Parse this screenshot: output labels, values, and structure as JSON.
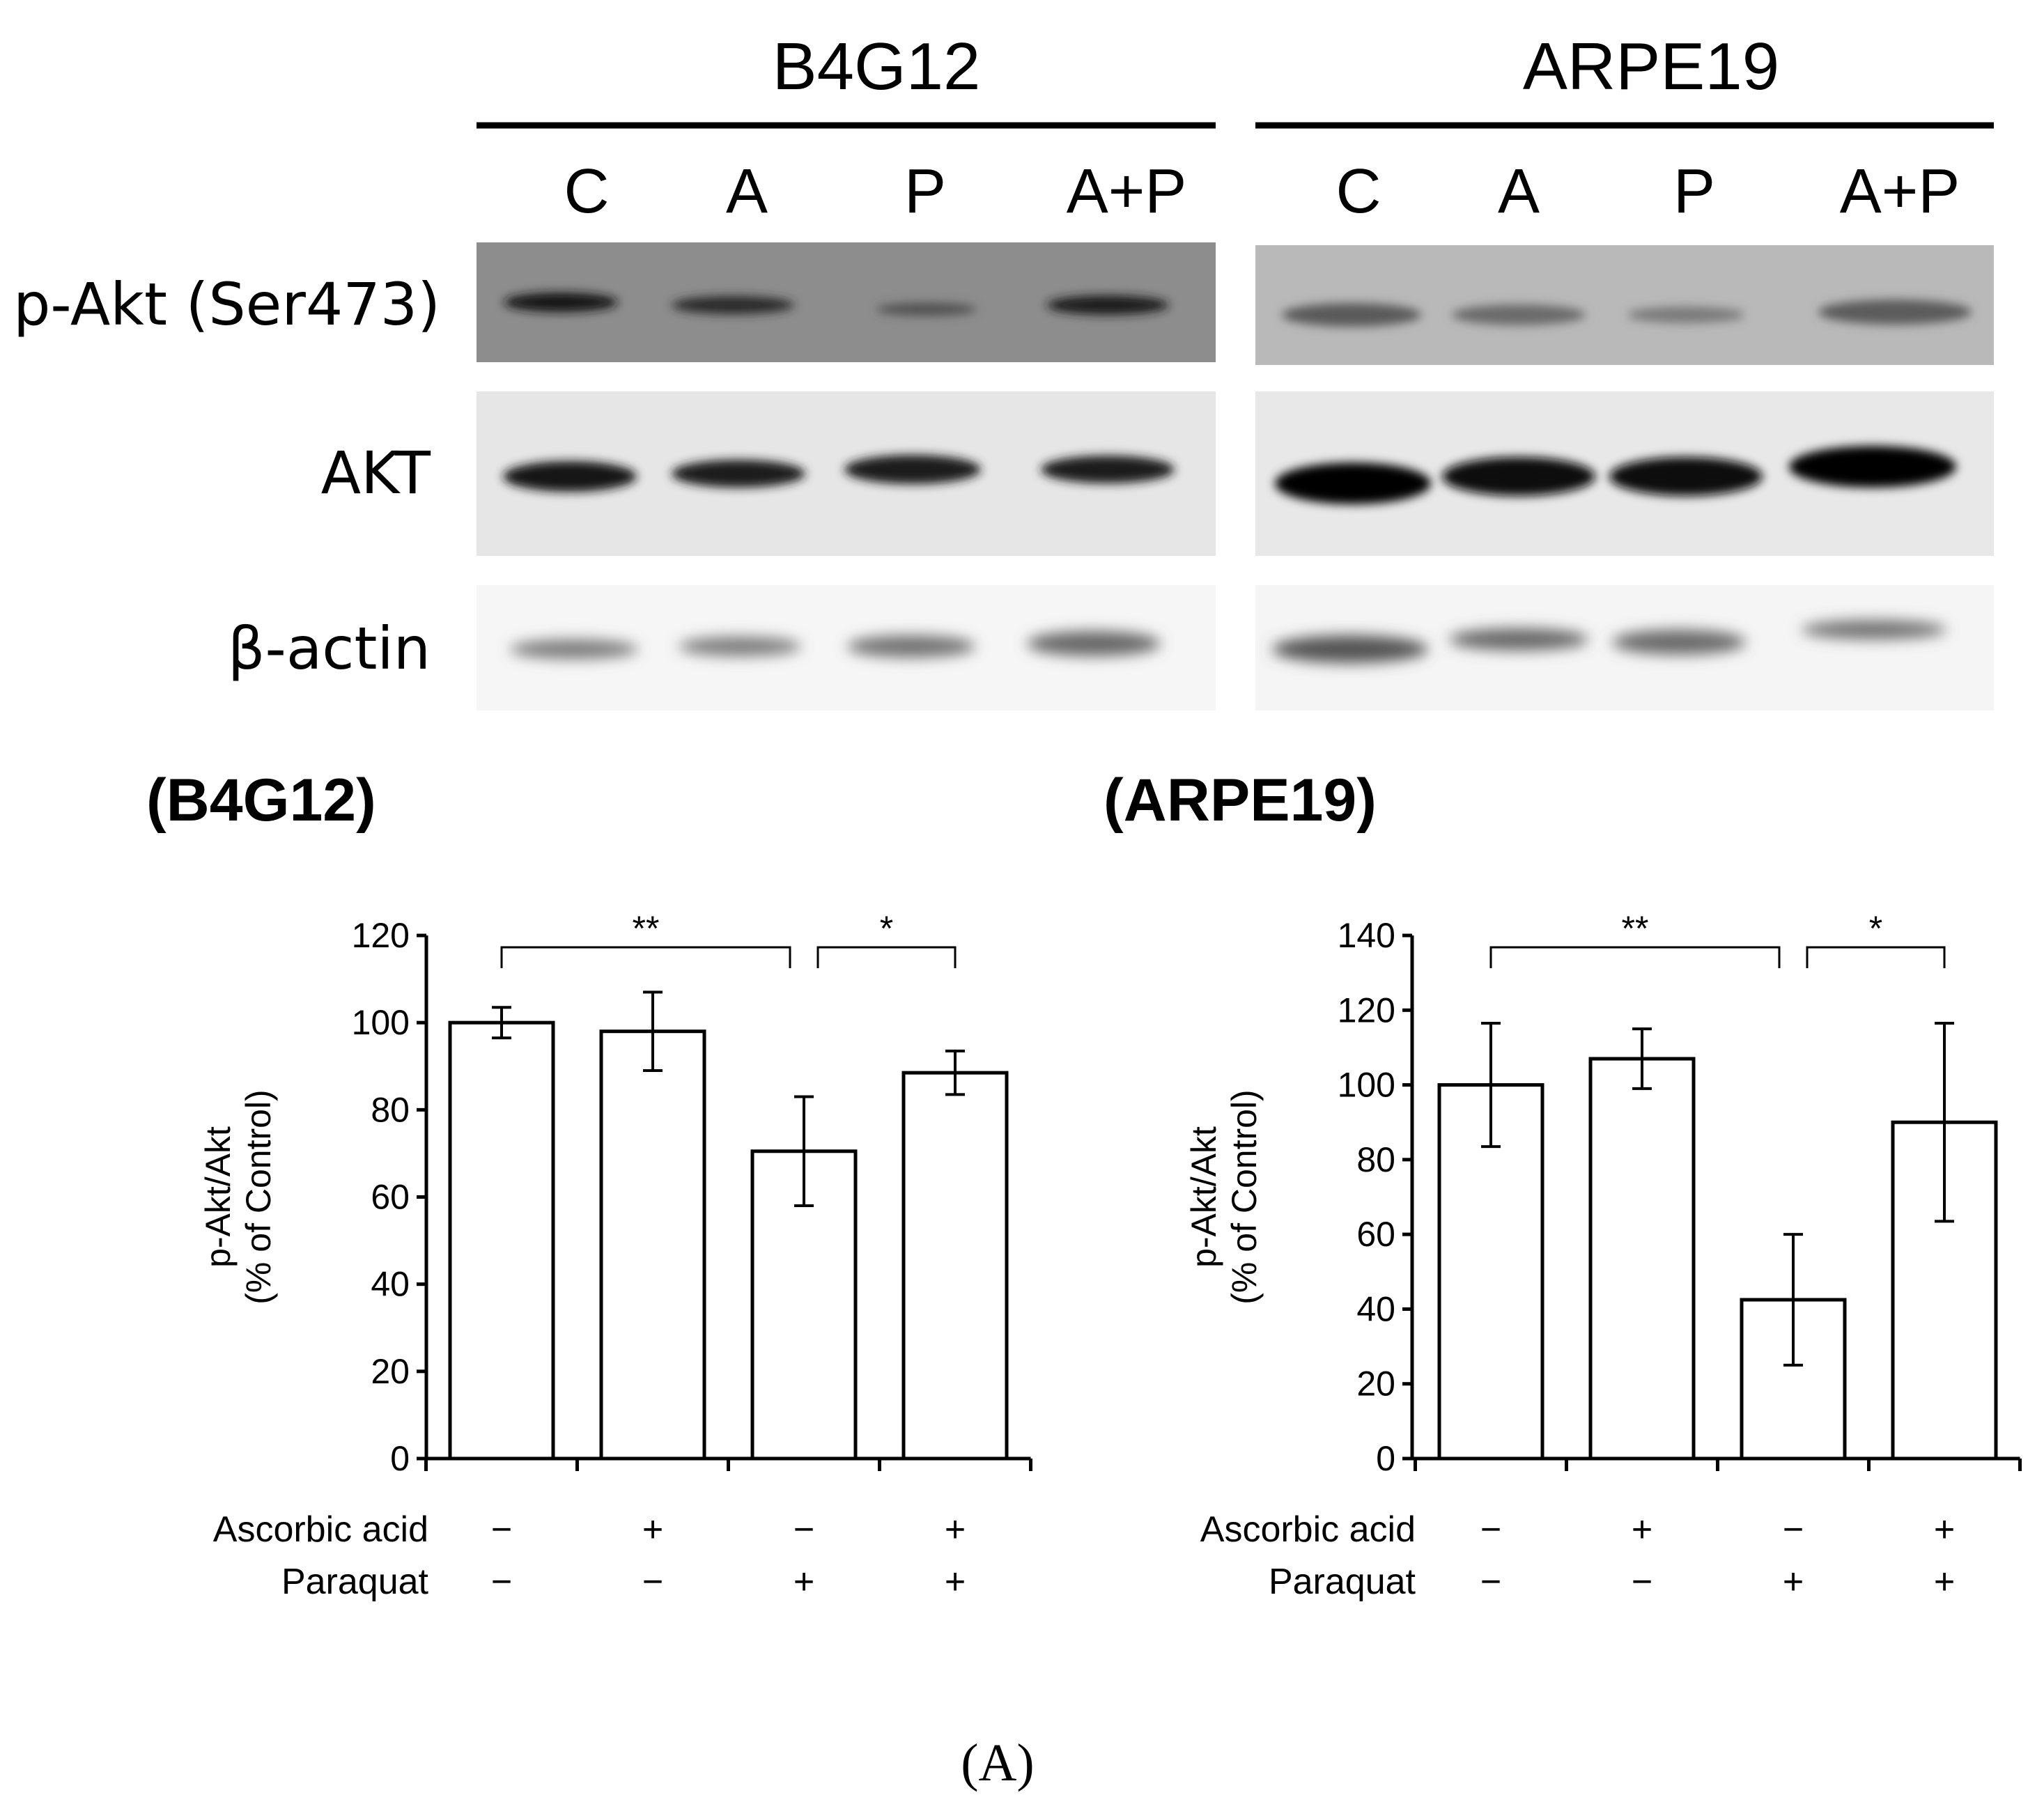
{
  "figure_label": "(A)",
  "western_blot": {
    "cell_lines": [
      "B4G12",
      "ARPE19"
    ],
    "lanes": [
      "C",
      "A",
      "P",
      "A+P"
    ],
    "rows": [
      "p-Akt (Ser473)",
      "AKT",
      "β-actin"
    ]
  },
  "colors": {
    "blot_bg_pakt_left": "#8d8d8d",
    "blot_bg_pakt_right": "#b9b9b9",
    "blot_bg_akt": "#e6e6e6",
    "blot_bg_actin": "#f6f6f6",
    "band_dark": "#141414",
    "bar_fill": "#ffffff",
    "bar_stroke": "#000000"
  },
  "chart_data": [
    {
      "type": "bar",
      "title": "(B4G12)",
      "ylabel_line1": "p-Akt/Akt",
      "ylabel_line2": "(% of Control)",
      "ylim": [
        0,
        120
      ],
      "yticks": [
        "0",
        "20",
        "40",
        "60",
        "80",
        "100",
        "120"
      ],
      "values": [
        100,
        98,
        70.5,
        88.5
      ],
      "errors": [
        3.5,
        9,
        12.5,
        5
      ],
      "treatment_rows": [
        {
          "label": "Ascorbic acid",
          "signs": [
            "−",
            "+",
            "−",
            "+"
          ]
        },
        {
          "label": "Paraquat",
          "signs": [
            "−",
            "−",
            "+",
            "+"
          ]
        }
      ],
      "significance": [
        {
          "from": 0,
          "to": 2,
          "label": "**"
        },
        {
          "from": 2,
          "to": 3,
          "label": "*"
        }
      ]
    },
    {
      "type": "bar",
      "title": "(ARPE19)",
      "ylabel_line1": "p-Akt/Akt",
      "ylabel_line2": "(% of Control)",
      "ylim": [
        0,
        140
      ],
      "yticks": [
        "0",
        "20",
        "40",
        "60",
        "80",
        "100",
        "120",
        "140"
      ],
      "values": [
        100,
        107,
        42.5,
        90
      ],
      "errors": [
        16.5,
        8,
        17.5,
        26.5
      ],
      "treatment_rows": [
        {
          "label": "Ascorbic acid",
          "signs": [
            "−",
            "+",
            "−",
            "+"
          ]
        },
        {
          "label": "Paraquat",
          "signs": [
            "−",
            "−",
            "+",
            "+"
          ]
        }
      ],
      "significance": [
        {
          "from": 0,
          "to": 2,
          "label": "**"
        },
        {
          "from": 2,
          "to": 3,
          "label": "*"
        }
      ]
    }
  ]
}
